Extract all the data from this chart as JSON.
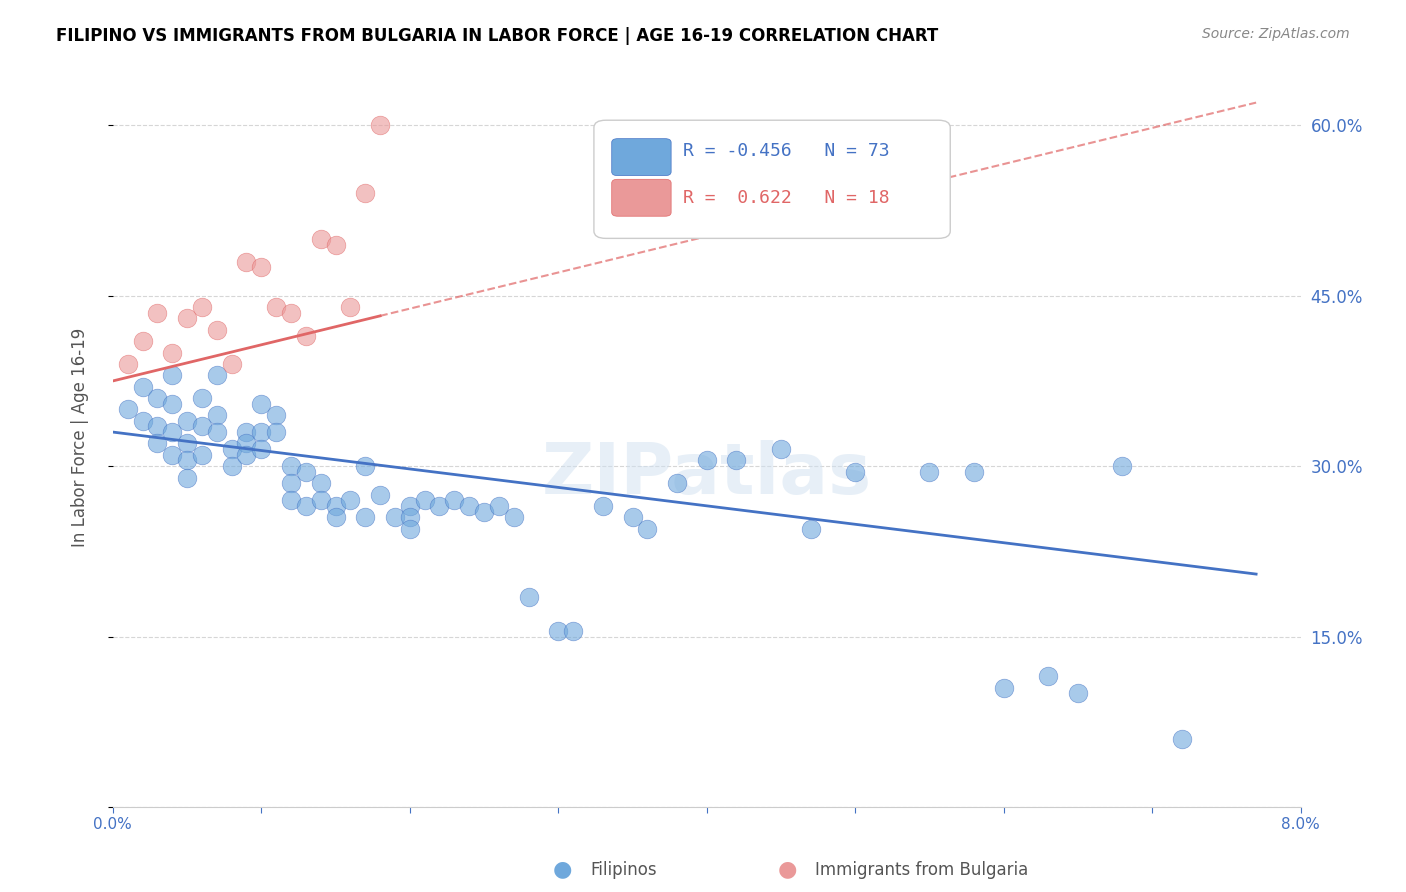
{
  "title": "FILIPINO VS IMMIGRANTS FROM BULGARIA IN LABOR FORCE | AGE 16-19 CORRELATION CHART",
  "source": "Source: ZipAtlas.com",
  "xlabel_bottom": "",
  "ylabel": "In Labor Force | Age 16-19",
  "watermark": "ZIPatlas",
  "x_min": 0.0,
  "x_max": 0.08,
  "y_min": 0.0,
  "y_max": 0.65,
  "x_ticks": [
    0.0,
    0.01,
    0.02,
    0.03,
    0.04,
    0.05,
    0.06,
    0.07,
    0.08
  ],
  "x_tick_labels": [
    "0.0%",
    "",
    "",
    "",
    "",
    "",
    "",
    "",
    "8.0%"
  ],
  "y_ticks": [
    0.0,
    0.15,
    0.3,
    0.45,
    0.6
  ],
  "y_tick_labels_right": [
    "",
    "15.0%",
    "30.0%",
    "45.0%",
    "60.0%"
  ],
  "legend_blue_label": "Filipinos",
  "legend_pink_label": "Immigrants from Bulgaria",
  "R_blue": -0.456,
  "N_blue": 73,
  "R_pink": 0.622,
  "N_pink": 18,
  "blue_color": "#6fa8dc",
  "pink_color": "#ea9999",
  "blue_line_color": "#4472c4",
  "pink_line_color": "#e06666",
  "grid_color": "#cccccc",
  "title_color": "#000000",
  "axis_label_color": "#4472c4",
  "right_tick_color": "#4472c4",
  "filipino_x": [
    0.001,
    0.002,
    0.002,
    0.003,
    0.003,
    0.003,
    0.004,
    0.004,
    0.004,
    0.004,
    0.005,
    0.005,
    0.005,
    0.005,
    0.006,
    0.006,
    0.006,
    0.007,
    0.007,
    0.007,
    0.008,
    0.008,
    0.009,
    0.009,
    0.009,
    0.01,
    0.01,
    0.01,
    0.011,
    0.011,
    0.012,
    0.012,
    0.012,
    0.013,
    0.013,
    0.014,
    0.014,
    0.015,
    0.015,
    0.016,
    0.017,
    0.017,
    0.018,
    0.019,
    0.02,
    0.02,
    0.02,
    0.021,
    0.022,
    0.023,
    0.024,
    0.025,
    0.026,
    0.027,
    0.028,
    0.03,
    0.031,
    0.033,
    0.035,
    0.036,
    0.038,
    0.04,
    0.042,
    0.045,
    0.047,
    0.05,
    0.055,
    0.058,
    0.06,
    0.063,
    0.065,
    0.068,
    0.072
  ],
  "filipino_y": [
    0.35,
    0.37,
    0.34,
    0.36,
    0.335,
    0.32,
    0.38,
    0.355,
    0.33,
    0.31,
    0.34,
    0.32,
    0.305,
    0.29,
    0.36,
    0.335,
    0.31,
    0.38,
    0.345,
    0.33,
    0.315,
    0.3,
    0.33,
    0.32,
    0.31,
    0.355,
    0.33,
    0.315,
    0.345,
    0.33,
    0.3,
    0.285,
    0.27,
    0.295,
    0.265,
    0.285,
    0.27,
    0.265,
    0.255,
    0.27,
    0.3,
    0.255,
    0.275,
    0.255,
    0.265,
    0.255,
    0.245,
    0.27,
    0.265,
    0.27,
    0.265,
    0.26,
    0.265,
    0.255,
    0.185,
    0.155,
    0.155,
    0.265,
    0.255,
    0.245,
    0.285,
    0.305,
    0.305,
    0.315,
    0.245,
    0.295,
    0.295,
    0.295,
    0.105,
    0.115,
    0.1,
    0.3,
    0.06
  ],
  "bulgaria_x": [
    0.001,
    0.002,
    0.003,
    0.004,
    0.005,
    0.006,
    0.007,
    0.008,
    0.009,
    0.01,
    0.011,
    0.012,
    0.013,
    0.014,
    0.015,
    0.016,
    0.017,
    0.018
  ],
  "bulgaria_y": [
    0.39,
    0.41,
    0.435,
    0.4,
    0.43,
    0.44,
    0.42,
    0.39,
    0.48,
    0.475,
    0.44,
    0.435,
    0.415,
    0.5,
    0.495,
    0.44,
    0.54,
    0.6
  ],
  "blue_trend_x": [
    0.0,
    0.077
  ],
  "blue_trend_y": [
    0.33,
    0.205
  ],
  "pink_trend_x": [
    0.0,
    0.077
  ],
  "pink_trend_y": [
    0.375,
    0.62
  ]
}
